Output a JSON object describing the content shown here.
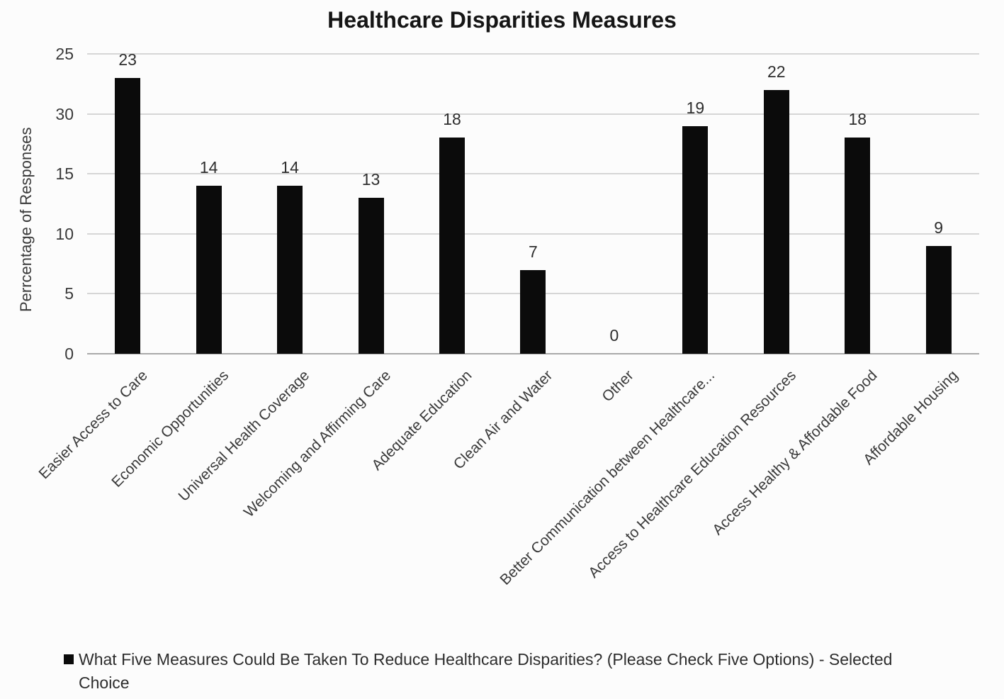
{
  "title": "Healthcare Disparities Measures",
  "y_axis": {
    "label": "Perrcentage of Responses",
    "ticks": [
      {
        "label": "0",
        "value": 0
      },
      {
        "label": "5",
        "value": 5
      },
      {
        "label": "10",
        "value": 10
      },
      {
        "label": "15",
        "value": 15
      },
      {
        "label": "30",
        "value": 20
      },
      {
        "label": "25",
        "value": 25
      }
    ]
  },
  "legend": {
    "swatch_color": "#0b0b0b",
    "text": "What Five Measures Could Be Taken To Reduce Healthcare Disparities? (Please Check Five Options) - Selected Choice"
  },
  "chart_data": {
    "type": "bar",
    "title": "Healthcare Disparities Measures",
    "xlabel": "",
    "ylabel": "Perrcentage of Responses",
    "ylim": [
      0,
      25
    ],
    "grid": true,
    "gridline_interval": 5,
    "legend_position": "bottom",
    "bar_color": "#0b0b0b",
    "y_tick_labels_top_to_bottom": [
      "25",
      "30",
      "15",
      "10",
      "5",
      "0"
    ],
    "categories": [
      "Easier Access to Care",
      "Economic Opportunities",
      "Universal Health Coverage",
      "Welcoming and Affirming Care",
      "Adequate Education",
      "Clean Air and Water",
      "Other",
      "Better Communication between Healthcare...",
      "Access to Healthcare Education Resources",
      "Access Healthy & Affordable Food",
      "Affordable Housing"
    ],
    "values": [
      23,
      14,
      14,
      13,
      18,
      7,
      0,
      19,
      22,
      18,
      9
    ],
    "data_labels_shown": true,
    "series": [
      {
        "name": "What Five Measures Could Be Taken To Reduce Healthcare Disparities? (Please Check Five Options) - Selected Choice",
        "values": [
          23,
          14,
          14,
          13,
          18,
          7,
          0,
          19,
          22,
          18,
          9
        ]
      }
    ]
  }
}
